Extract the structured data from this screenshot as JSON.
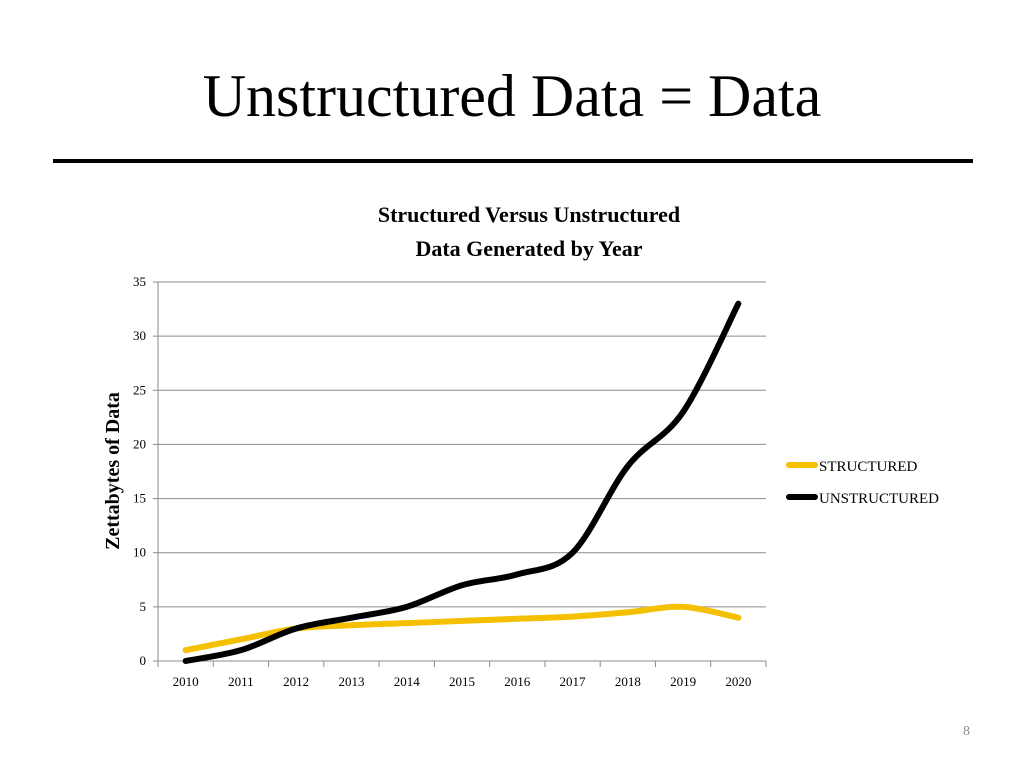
{
  "slide": {
    "title": "Unstructured Data = Data",
    "page_number": "8"
  },
  "chart_data": {
    "type": "line",
    "title_lines": [
      "Structured Versus Unstructured",
      "Data Generated by Year"
    ],
    "xlabel": "",
    "ylabel": "Zettabytes of Data",
    "categories": [
      "2010",
      "2011",
      "2012",
      "2013",
      "2014",
      "2015",
      "2016",
      "2017",
      "2018",
      "2019",
      "2020"
    ],
    "ylim": [
      0,
      35
    ],
    "yticks": [
      0,
      5,
      10,
      15,
      20,
      25,
      30,
      35
    ],
    "grid": true,
    "legend_position": "right",
    "series": [
      {
        "name": "STRUCTURED",
        "color": "#f5c000",
        "values": [
          1,
          2,
          3,
          3.3,
          3.5,
          3.7,
          3.9,
          4.1,
          4.5,
          5,
          4
        ]
      },
      {
        "name": "UNSTRUCTURED",
        "color": "#000000",
        "values": [
          0,
          1,
          3,
          4,
          5,
          7,
          8,
          10,
          18,
          23,
          33
        ]
      }
    ]
  }
}
